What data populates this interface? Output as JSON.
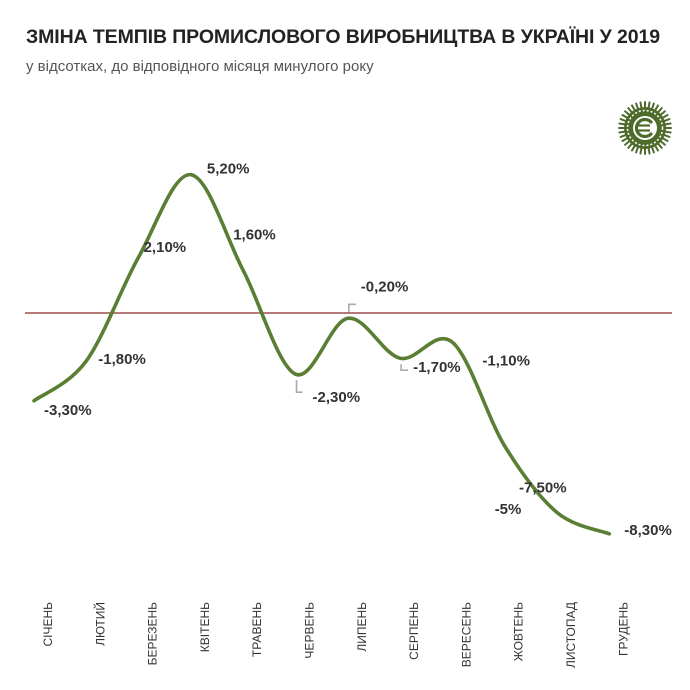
{
  "chart_data": {
    "type": "line",
    "title": "ЗМІНА ТЕМПІВ ПРОМИСЛОВОГО ВИРОБНИЦТВА В УКРАЇНІ У 2019",
    "subtitle": "у відсотках, до відповідного місяця минулого року",
    "categories": [
      "СІЧЕНЬ",
      "ЛЮТИЙ",
      "БЕРЕЗЕНЬ",
      "КВІТЕНЬ",
      "ТРАВЕНЬ",
      "ЧЕРВЕНЬ",
      "ЛИПЕНЬ",
      "СЕРПЕНЬ",
      "ВЕРЕСЕНЬ",
      "ЖОВТЕНЬ",
      "ЛИСТОПАД",
      "ГРУДЕНЬ"
    ],
    "series": [
      {
        "name": "Зміна темпів промислового виробництва",
        "values": [
          -3.3,
          -1.8,
          2.1,
          5.2,
          1.6,
          -2.3,
          -0.2,
          -1.7,
          -1.1,
          -5,
          -7.5,
          -8.3
        ],
        "labels": [
          "-3,30%",
          "-1,80%",
          "2,10%",
          "5,20%",
          "1,60%",
          "-2,30%",
          "-0,20%",
          "-1,70%",
          "-1,10%",
          "-5%",
          "-7,50%",
          "-8,30%"
        ]
      }
    ],
    "reference_line": 0,
    "ylim": [
      -9,
      6
    ],
    "xlabel": "",
    "ylabel": "",
    "grid": false,
    "legend": "none",
    "colors": {
      "line": "#5a7e33",
      "zero_line": "#8b2a2a",
      "text": "#333333",
      "leader": "#aaaaaa",
      "logo": "#4e6b2b"
    }
  },
  "logo": {
    "icon": "publisher-logo-icon"
  }
}
